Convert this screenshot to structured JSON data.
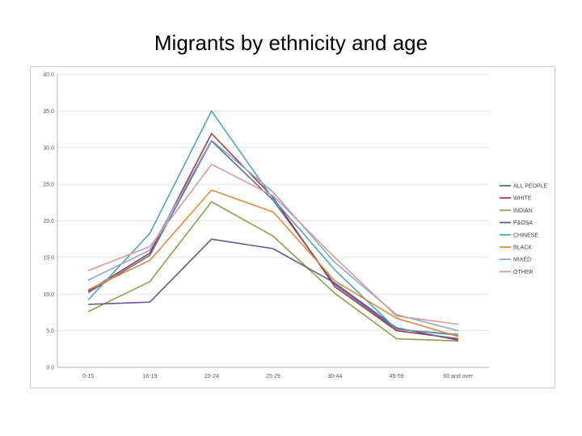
{
  "title": "Migrants by ethnicity and age",
  "chart_data": {
    "type": "line",
    "title": "Migrants by ethnicity and age",
    "xlabel": "",
    "ylabel": "",
    "categories": [
      "0-15",
      "16-19",
      "20-24",
      "25-29",
      "30-44",
      "45-59",
      "60 and over"
    ],
    "ylim": [
      0,
      40
    ],
    "yticks": [
      "0.0",
      "5.0",
      "10.0",
      "15.0",
      "20.0",
      "25.0",
      "30.0",
      "35.0",
      "40.0"
    ],
    "grid": true,
    "legend_position": "right",
    "series": [
      {
        "name": "ALL PEOPLE",
        "color": "#4f6fa8",
        "values": [
          10.2,
          15.3,
          30.9,
          22.8,
          11.3,
          5.2,
          4.4
        ]
      },
      {
        "name": "WHITE",
        "color": "#a63a3a",
        "values": [
          10.4,
          15.6,
          31.9,
          23.2,
          11.0,
          5.0,
          3.9
        ]
      },
      {
        "name": "INDIAN",
        "color": "#8aa04a",
        "values": [
          7.6,
          11.7,
          22.6,
          17.9,
          10.1,
          3.9,
          3.6
        ]
      },
      {
        "name": "P&OSA",
        "color": "#6e5590",
        "values": [
          8.6,
          8.9,
          17.5,
          16.2,
          11.5,
          5.4,
          3.7
        ]
      },
      {
        "name": "CHINESE",
        "color": "#4fa3bf",
        "values": [
          9.2,
          18.3,
          35.0,
          23.0,
          13.3,
          5.2,
          4.5
        ]
      },
      {
        "name": "BLACK",
        "color": "#e08a3a",
        "values": [
          10.6,
          14.6,
          24.2,
          21.2,
          11.8,
          6.7,
          4.2
        ]
      },
      {
        "name": "MIXED",
        "color": "#8ea6cf",
        "values": [
          11.9,
          16.0,
          31.0,
          23.9,
          14.3,
          7.2,
          5.0
        ]
      },
      {
        "name": "OTHER",
        "color": "#d99a96",
        "values": [
          13.2,
          16.5,
          27.7,
          23.4,
          15.0,
          7.0,
          5.9
        ]
      }
    ]
  }
}
